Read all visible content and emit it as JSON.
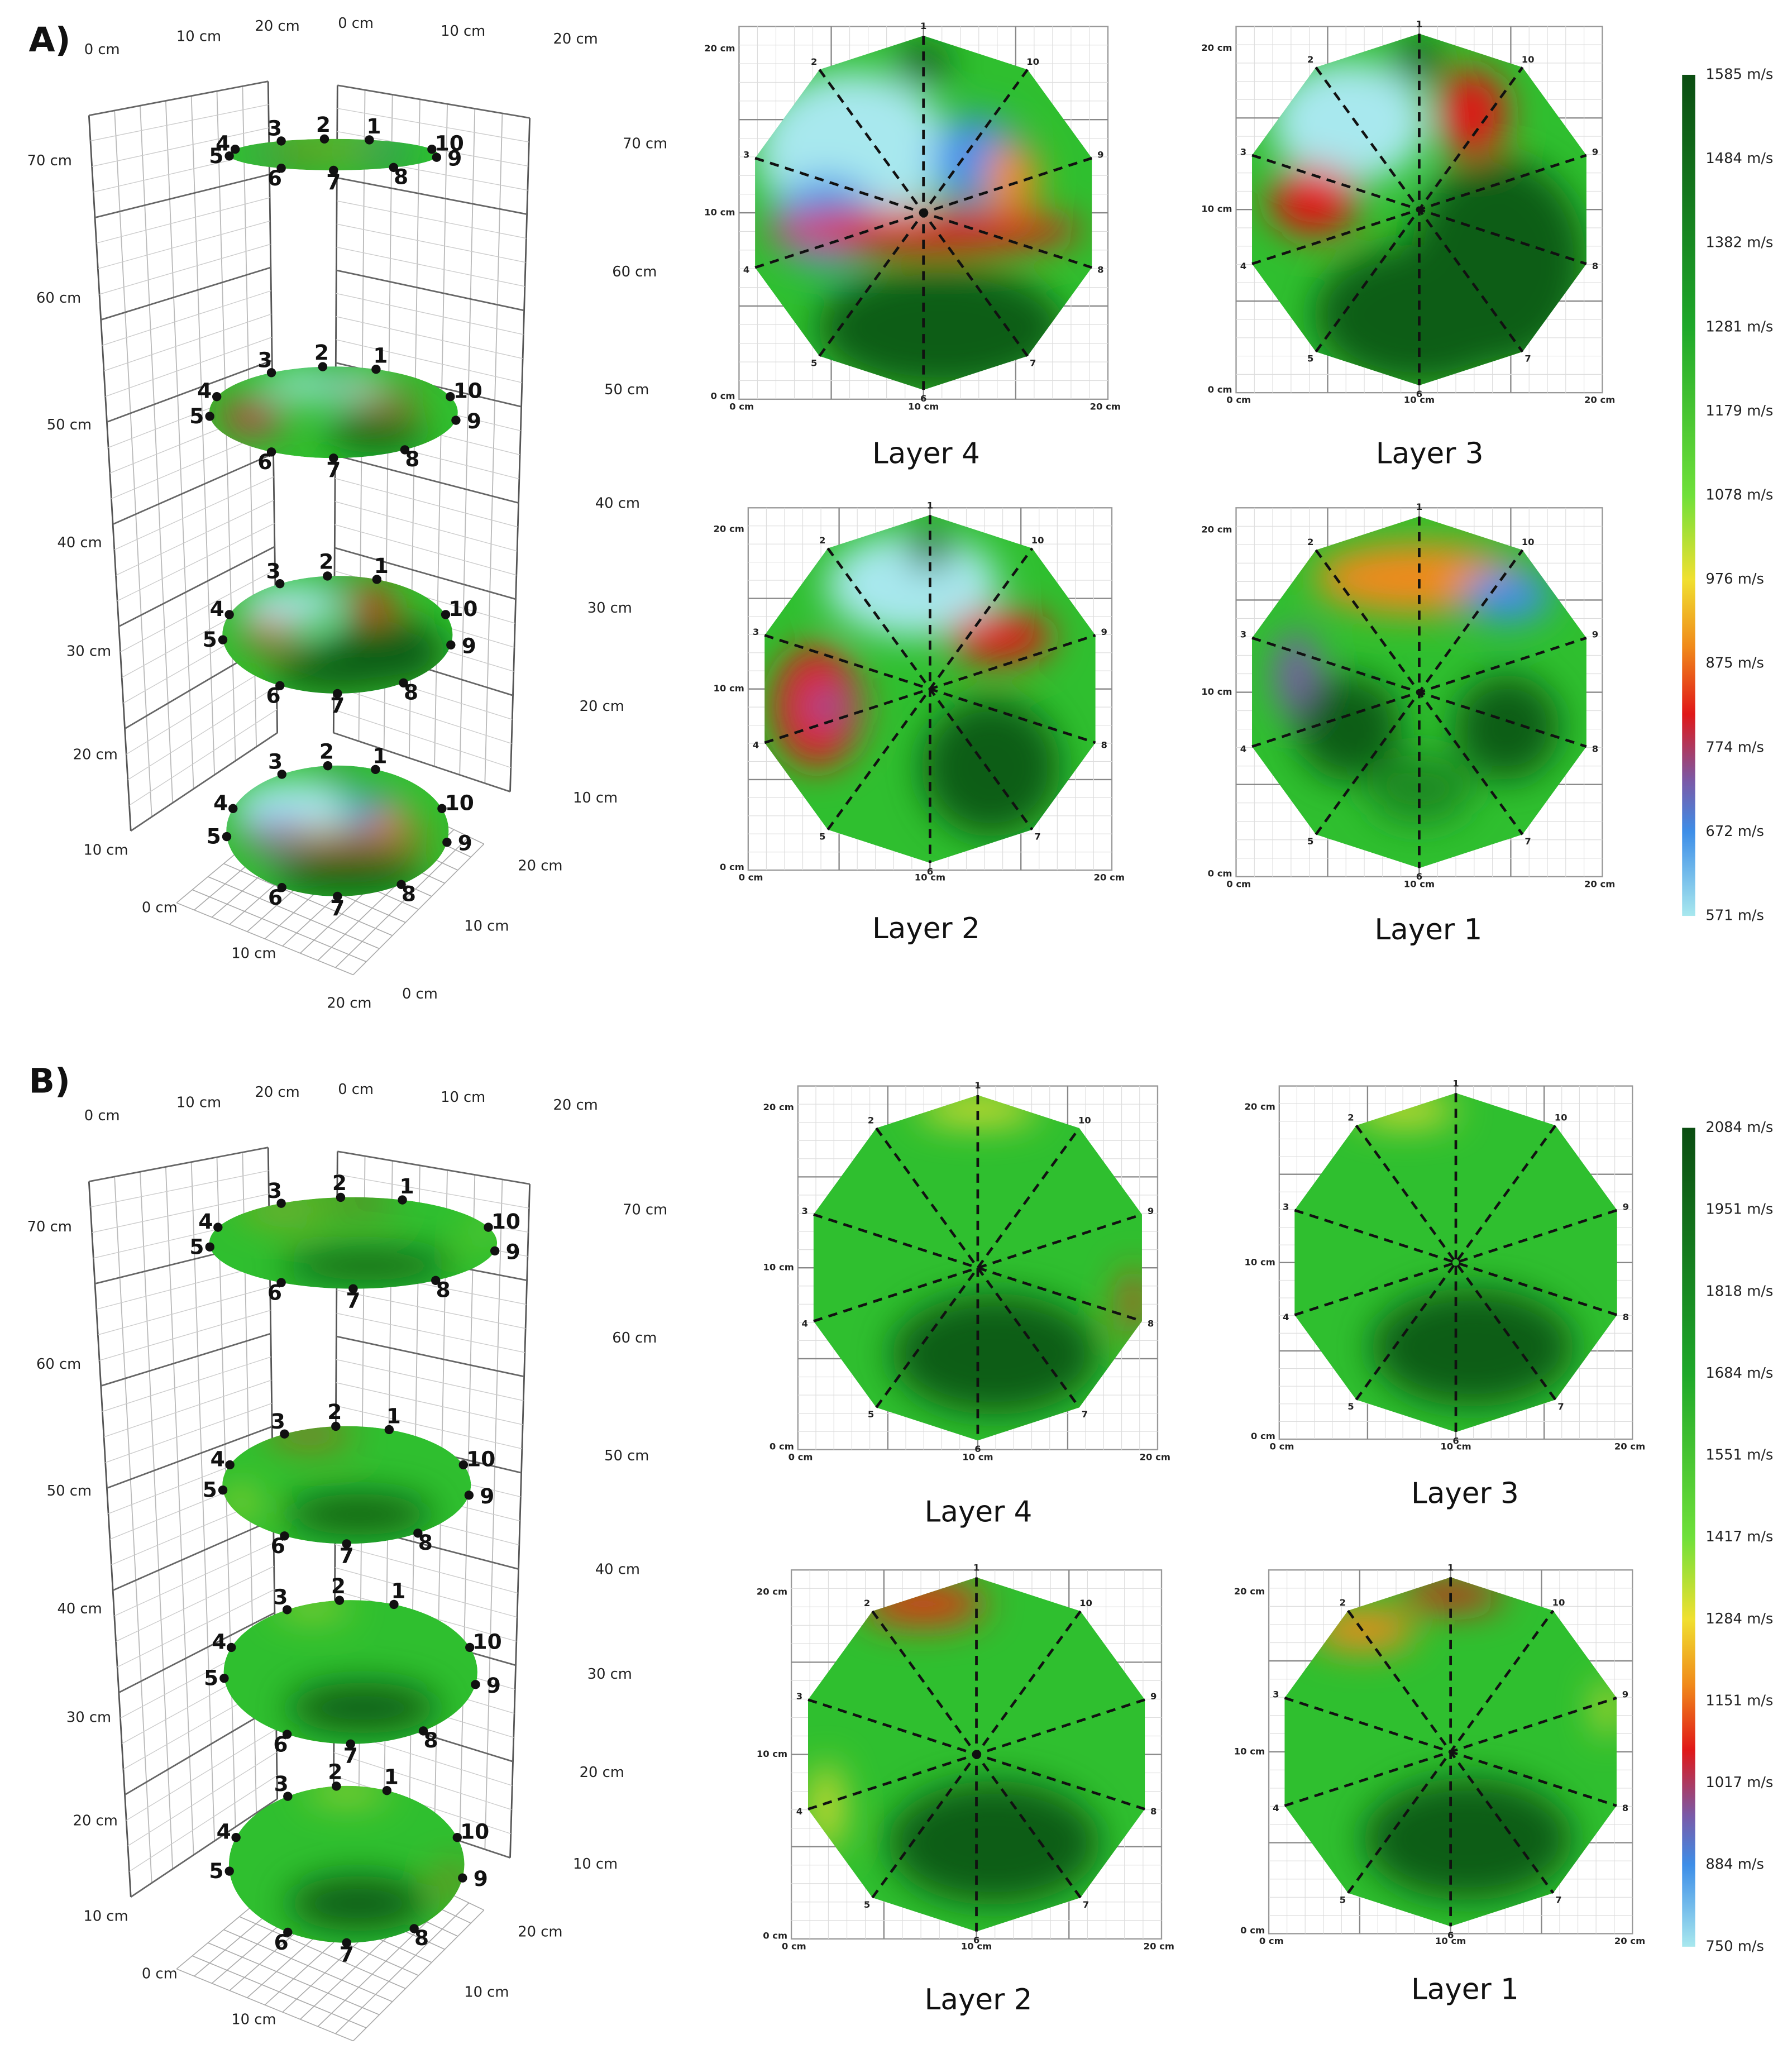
{
  "panels": [
    {
      "label": "A)",
      "layers": [
        {
          "title": "Layer 4"
        },
        {
          "title": "Layer 3"
        },
        {
          "title": "Layer 2"
        },
        {
          "title": "Layer 1"
        }
      ],
      "colorbar": [
        "1585 m/s",
        "1484 m/s",
        "1382 m/s",
        "1281 m/s",
        "1179 m/s",
        "1078 m/s",
        "976 m/s",
        "875 m/s",
        "774 m/s",
        "672 m/s",
        "571 m/s"
      ]
    },
    {
      "label": "B)",
      "layers": [
        {
          "title": "Layer 4"
        },
        {
          "title": "Layer 3"
        },
        {
          "title": "Layer 2"
        },
        {
          "title": "Layer 1"
        }
      ],
      "colorbar": [
        "2084 m/s",
        "1951 m/s",
        "1818 m/s",
        "1684 m/s",
        "1551 m/s",
        "1417 m/s",
        "1284 m/s",
        "1151 m/s",
        "1017 m/s",
        "884 m/s",
        "750 m/s"
      ]
    }
  ],
  "sensors": [
    "1",
    "2",
    "3",
    "4",
    "5",
    "6",
    "7",
    "8",
    "9",
    "10"
  ],
  "axis_cm": [
    "0 cm",
    "10 cm",
    "20 cm"
  ],
  "heights": [
    "10 cm",
    "20 cm",
    "30 cm",
    "40 cm",
    "50 cm",
    "60 cm",
    "70 cm"
  ]
}
